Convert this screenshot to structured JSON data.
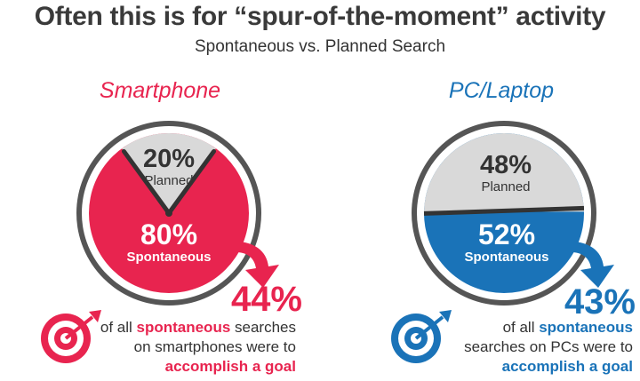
{
  "header": {
    "title": "Often this is for “spur-of-the-moment” activity",
    "subtitle": "Spontaneous vs. Planned Search"
  },
  "colors": {
    "smartphone": "#e8244f",
    "pc": "#1a73b8",
    "planned": "#d9d9d9",
    "ring": "#555555"
  },
  "chart_data": [
    {
      "type": "pie",
      "title": "Smartphone",
      "slices": [
        {
          "label": "Planned",
          "value": 20,
          "display": "20%"
        },
        {
          "label": "Spontaneous",
          "value": 80,
          "display": "80%"
        }
      ],
      "annotation": {
        "stat": "44%",
        "line1_pre": "of all ",
        "line1_hl": "spontaneous",
        "line1_post": " searches",
        "line2": "on smartphones were to",
        "line3_hl": "accomplish a goal"
      }
    },
    {
      "type": "pie",
      "title": "PC/Laptop",
      "slices": [
        {
          "label": "Planned",
          "value": 48,
          "display": "48%"
        },
        {
          "label": "Spontaneous",
          "value": 52,
          "display": "52%"
        }
      ],
      "annotation": {
        "stat": "43%",
        "line1_pre": "of all ",
        "line1_hl": "spontaneous",
        "line1_post": "",
        "line2": "searches on PCs were to",
        "line3_hl": "accomplish a goal"
      }
    }
  ]
}
